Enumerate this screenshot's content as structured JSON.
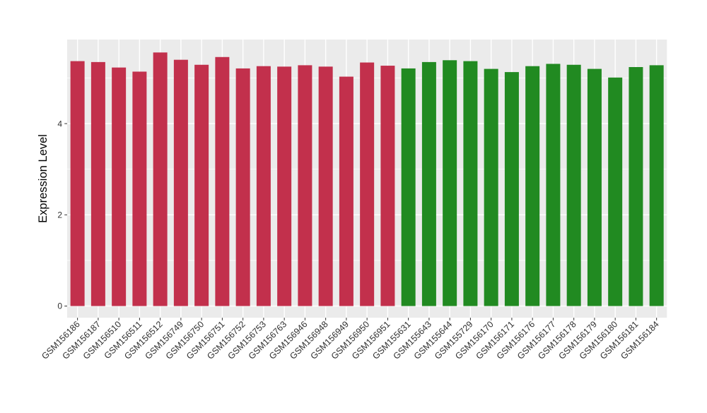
{
  "figure": {
    "background": "#FFFFFF",
    "panel_background": "#EBEBEB",
    "gridline_color": "#FFFFFF",
    "tick_mark_color": "#333333",
    "axis_text_color": "#303030",
    "axis_title_color": "#000000"
  },
  "chart_data": {
    "type": "bar",
    "title": "",
    "xlabel": "",
    "ylabel": "Expression Level",
    "legend": "none",
    "grid": "on",
    "ylim": [
      0,
      5.84
    ],
    "y_ticks": [
      0,
      2,
      4
    ],
    "y_minor_ticks": [
      1,
      3,
      5
    ],
    "categories": [
      "GSM156186",
      "GSM156187",
      "GSM156510",
      "GSM156511",
      "GSM156512",
      "GSM156749",
      "GSM156750",
      "GSM156751",
      "GSM156752",
      "GSM156753",
      "GSM156763",
      "GSM156946",
      "GSM156948",
      "GSM156949",
      "GSM156950",
      "GSM156951",
      "GSM155631",
      "GSM155643",
      "GSM155644",
      "GSM155729",
      "GSM156170",
      "GSM156171",
      "GSM156176",
      "GSM156177",
      "GSM156178",
      "GSM156179",
      "GSM156180",
      "GSM156181",
      "GSM156184"
    ],
    "values": [
      5.37,
      5.35,
      5.23,
      5.14,
      5.56,
      5.4,
      5.29,
      5.46,
      5.21,
      5.26,
      5.25,
      5.28,
      5.25,
      5.03,
      5.34,
      5.27,
      5.21,
      5.35,
      5.39,
      5.37,
      5.2,
      5.13,
      5.26,
      5.31,
      5.29,
      5.2,
      5.01,
      5.24,
      5.28
    ],
    "color_groups": [
      {
        "name": "group-red",
        "color": "#C2304C",
        "from": 0,
        "to": 15
      },
      {
        "name": "group-green",
        "color": "#218A21",
        "from": 16,
        "to": 28
      }
    ]
  }
}
